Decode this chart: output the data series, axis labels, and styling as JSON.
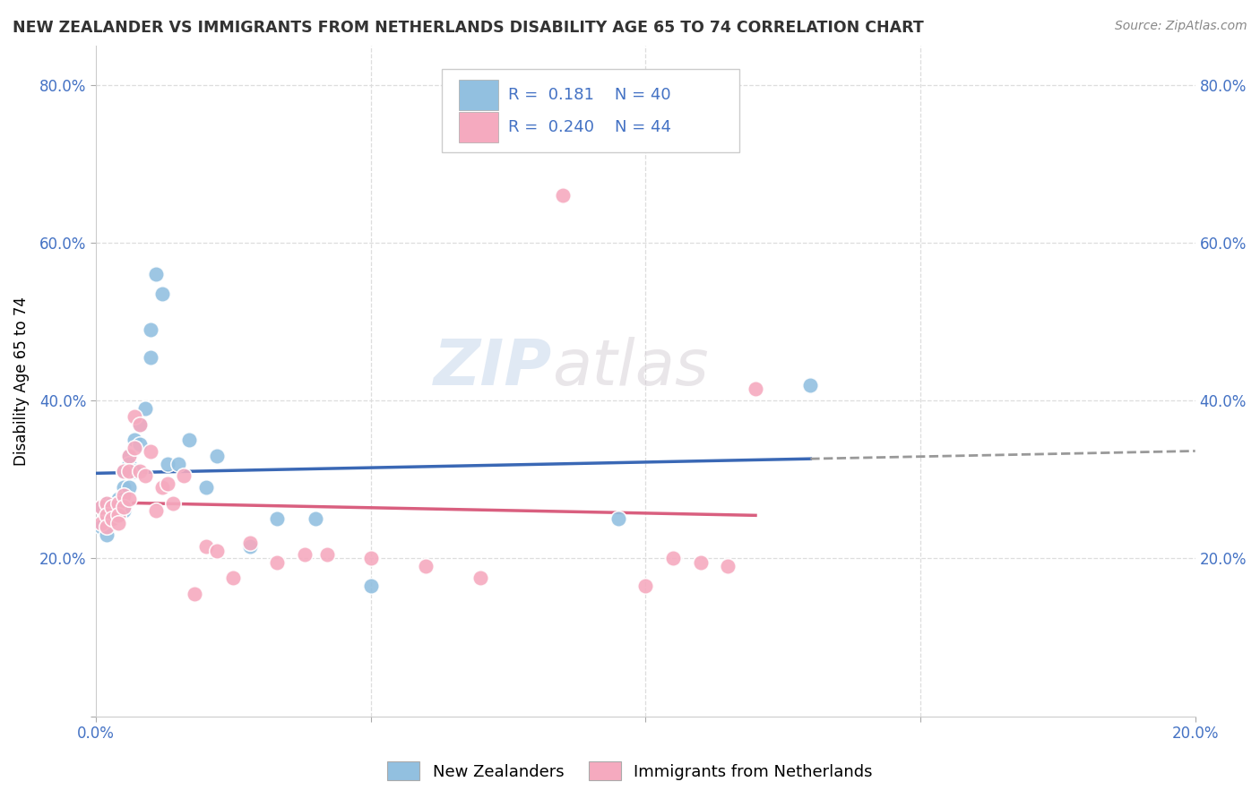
{
  "title": "NEW ZEALANDER VS IMMIGRANTS FROM NETHERLANDS DISABILITY AGE 65 TO 74 CORRELATION CHART",
  "source": "Source: ZipAtlas.com",
  "ylabel": "Disability Age 65 to 74",
  "xlim": [
    0.0,
    0.2
  ],
  "ylim": [
    0.0,
    0.85
  ],
  "yticks": [
    0.0,
    0.2,
    0.4,
    0.6,
    0.8
  ],
  "ytick_labels": [
    "",
    "20.0%",
    "40.0%",
    "60.0%",
    "80.0%"
  ],
  "xticks": [
    0.0,
    0.05,
    0.1,
    0.15,
    0.2
  ],
  "xtick_labels": [
    "0.0%",
    "",
    "",
    "",
    "20.0%"
  ],
  "legend_labels": [
    "New Zealanders",
    "Immigrants from Netherlands"
  ],
  "R_nz": 0.181,
  "N_nz": 40,
  "R_im": 0.24,
  "N_im": 44,
  "blue_color": "#92C0E0",
  "pink_color": "#F5AABF",
  "blue_line_color": "#3A68B5",
  "pink_line_color": "#D95F7F",
  "watermark_zip": "ZIP",
  "watermark_atlas": "atlas",
  "nz_x": [
    0.001,
    0.001,
    0.002,
    0.002,
    0.002,
    0.003,
    0.003,
    0.003,
    0.003,
    0.004,
    0.004,
    0.004,
    0.004,
    0.005,
    0.005,
    0.005,
    0.005,
    0.006,
    0.006,
    0.006,
    0.007,
    0.007,
    0.008,
    0.008,
    0.009,
    0.01,
    0.01,
    0.011,
    0.012,
    0.013,
    0.015,
    0.017,
    0.02,
    0.022,
    0.028,
    0.033,
    0.04,
    0.05,
    0.095,
    0.13
  ],
  "nz_y": [
    0.265,
    0.24,
    0.27,
    0.255,
    0.23,
    0.27,
    0.26,
    0.255,
    0.25,
    0.275,
    0.27,
    0.265,
    0.255,
    0.31,
    0.29,
    0.275,
    0.26,
    0.33,
    0.32,
    0.29,
    0.35,
    0.31,
    0.37,
    0.345,
    0.39,
    0.455,
    0.49,
    0.56,
    0.535,
    0.32,
    0.32,
    0.35,
    0.29,
    0.33,
    0.215,
    0.25,
    0.25,
    0.165,
    0.25,
    0.42
  ],
  "im_x": [
    0.001,
    0.001,
    0.002,
    0.002,
    0.002,
    0.003,
    0.003,
    0.004,
    0.004,
    0.004,
    0.005,
    0.005,
    0.005,
    0.006,
    0.006,
    0.006,
    0.007,
    0.007,
    0.008,
    0.008,
    0.009,
    0.01,
    0.011,
    0.012,
    0.013,
    0.014,
    0.016,
    0.018,
    0.02,
    0.022,
    0.025,
    0.028,
    0.033,
    0.038,
    0.042,
    0.05,
    0.06,
    0.07,
    0.085,
    0.1,
    0.105,
    0.11,
    0.115,
    0.12
  ],
  "im_y": [
    0.265,
    0.245,
    0.27,
    0.255,
    0.24,
    0.265,
    0.25,
    0.27,
    0.255,
    0.245,
    0.31,
    0.28,
    0.265,
    0.33,
    0.31,
    0.275,
    0.38,
    0.34,
    0.37,
    0.31,
    0.305,
    0.335,
    0.26,
    0.29,
    0.295,
    0.27,
    0.305,
    0.155,
    0.215,
    0.21,
    0.175,
    0.22,
    0.195,
    0.205,
    0.205,
    0.2,
    0.19,
    0.175,
    0.66,
    0.165,
    0.2,
    0.195,
    0.19,
    0.415
  ]
}
